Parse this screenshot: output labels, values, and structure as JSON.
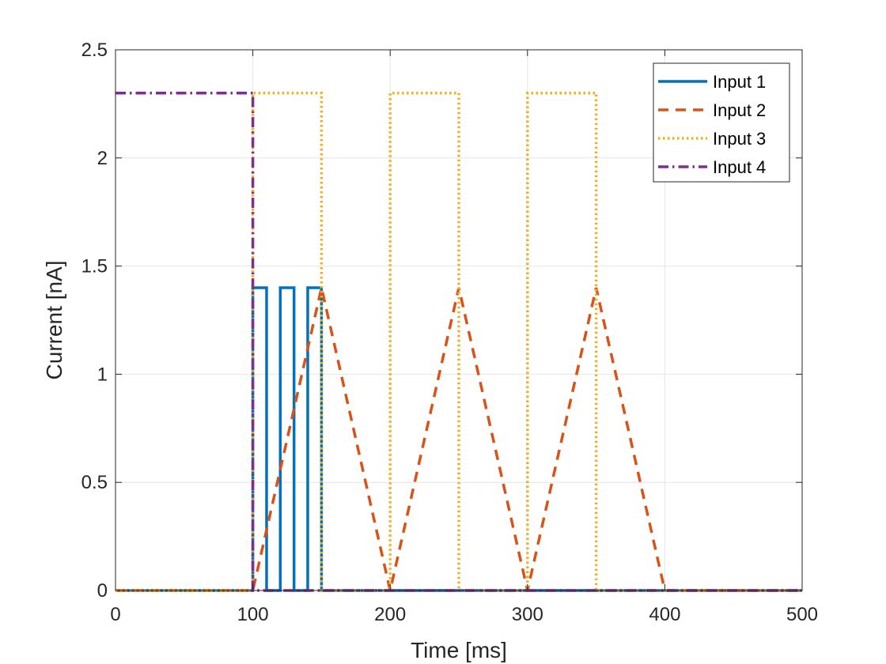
{
  "chart_data": {
    "type": "line",
    "title": "",
    "xlabel": "Time [ms]",
    "ylabel": "Current [nA]",
    "xlim": [
      0,
      500
    ],
    "ylim": [
      0,
      2.5
    ],
    "grid": true,
    "legend_position": "top-right",
    "xticks": [
      0,
      100,
      200,
      300,
      400,
      500
    ],
    "xtick_labels": [
      "0",
      "100",
      "200",
      "300",
      "400",
      "500"
    ],
    "yticks": [
      0,
      0.5,
      1,
      1.5,
      2,
      2.5
    ],
    "ytick_labels": [
      "0",
      "0.5",
      "1",
      "1.5",
      "2",
      "2.5"
    ],
    "series": [
      {
        "name": "Input 1",
        "color": "#0072BD",
        "dash": "solid",
        "x": [
          0,
          100,
          100,
          110,
          110,
          120,
          120,
          130,
          130,
          140,
          140,
          150,
          150,
          500
        ],
        "y": [
          0,
          0,
          1.4,
          1.4,
          0,
          0,
          1.4,
          1.4,
          0,
          0,
          1.4,
          1.4,
          0,
          0
        ]
      },
      {
        "name": "Input 2",
        "color": "#D95319",
        "dash": "dashed",
        "x": [
          0,
          100,
          150,
          200,
          250,
          300,
          350,
          400,
          500
        ],
        "y": [
          0,
          0,
          1.4,
          0,
          1.4,
          0,
          1.4,
          0,
          0
        ]
      },
      {
        "name": "Input 3",
        "color": "#EDB120",
        "dash": "dotted",
        "x": [
          0,
          100,
          100,
          150,
          150,
          200,
          200,
          250,
          250,
          300,
          300,
          350,
          350,
          500
        ],
        "y": [
          0,
          0,
          2.3,
          2.3,
          0,
          0,
          2.3,
          2.3,
          0,
          0,
          2.3,
          2.3,
          0,
          0
        ]
      },
      {
        "name": "Input 4",
        "color": "#7E2F8E",
        "dash": "dashdot",
        "x": [
          0,
          100,
          100,
          500
        ],
        "y": [
          2.3,
          2.3,
          0,
          0
        ]
      }
    ]
  }
}
